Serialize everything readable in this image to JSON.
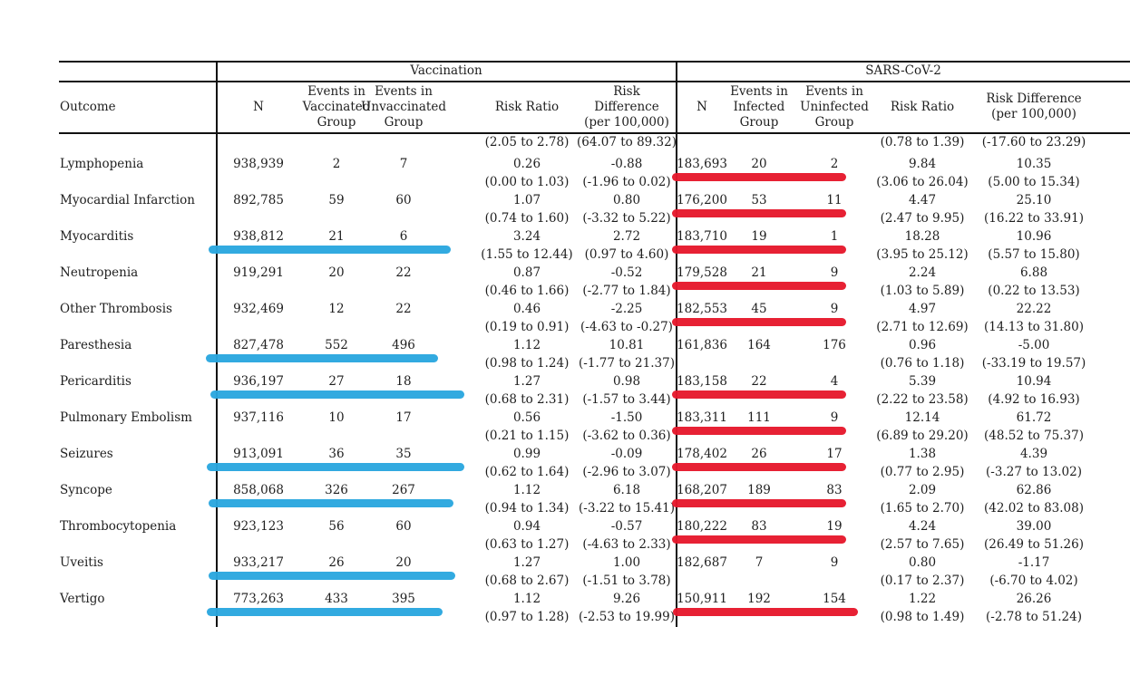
{
  "header": {
    "section_vaccination": "Vaccination",
    "section_sars": "SARS-CoV-2",
    "col_outcome": "Outcome",
    "vax": {
      "n": "N",
      "events_exposed": "Events in\nVaccinated\nGroup",
      "events_unexposed": "Events in\nUnvaccinated\nGroup",
      "risk_ratio": "Risk Ratio",
      "risk_difference": "Risk\nDifference\n(per 100,000)"
    },
    "sars": {
      "n": "N",
      "events_exposed": "Events in\nInfected\nGroup",
      "events_unexposed": "Events in\nUninfected\nGroup",
      "risk_ratio": "Risk Ratio",
      "risk_difference": "Risk Difference\n(per 100,000)"
    }
  },
  "orphan_row": {
    "vax_risk_ratio_ci": "(2.05 to 2.78)",
    "vax_risk_difference_ci": "(64.07 to 89.32)",
    "sars_risk_ratio_ci": "(0.78 to 1.39)",
    "sars_risk_difference_ci": "(-17.60 to 23.29)"
  },
  "annotations": {
    "vaccination_highlight_color": "#2aa7df",
    "sars_highlight_color": "#e6182c"
  },
  "table": {
    "rows": [
      {
        "outcome": "Lymphopenia",
        "vax": {
          "n": "938,939",
          "events_exposed": "2",
          "events_unexposed": "7",
          "rr": "0.26",
          "rr_ci": "(0.00 to 1.03)",
          "rd": "-0.88",
          "rd_ci": "(-1.96 to 0.02)"
        },
        "sars": {
          "n": "183,693",
          "events_exposed": "20",
          "events_unexposed": "2",
          "rr": "9.84",
          "rr_ci": "(3.06 to 26.04)",
          "rd": "10.35",
          "rd_ci": "(5.00 to 15.34)"
        },
        "vax_marker": null,
        "sars_marker": [
          741,
          933
        ]
      },
      {
        "outcome": "Myocardial Infarction",
        "vax": {
          "n": "892,785",
          "events_exposed": "59",
          "events_unexposed": "60",
          "rr": "1.07",
          "rr_ci": "(0.74 to 1.60)",
          "rd": "0.80",
          "rd_ci": "(-3.32 to 5.22)"
        },
        "sars": {
          "n": "176,200",
          "events_exposed": "53",
          "events_unexposed": "11",
          "rr": "4.47",
          "rr_ci": "(2.47 to 9.95)",
          "rd": "25.10",
          "rd_ci": "(16.22 to 33.91)"
        },
        "vax_marker": null,
        "sars_marker": [
          741,
          933
        ]
      },
      {
        "outcome": "Myocarditis",
        "vax": {
          "n": "938,812",
          "events_exposed": "21",
          "events_unexposed": "6",
          "rr": "3.24",
          "rr_ci": "(1.55 to 12.44)",
          "rd": "2.72",
          "rd_ci": "(0.97 to 4.60)"
        },
        "sars": {
          "n": "183,710",
          "events_exposed": "19",
          "events_unexposed": "1",
          "rr": "18.28",
          "rr_ci": "(3.95 to 25.12)",
          "rd": "10.96",
          "rd_ci": "(5.57 to 15.80)"
        },
        "vax_marker": [
          230,
          497
        ],
        "sars_marker": [
          741,
          933
        ]
      },
      {
        "outcome": "Neutropenia",
        "vax": {
          "n": "919,291",
          "events_exposed": "20",
          "events_unexposed": "22",
          "rr": "0.87",
          "rr_ci": "(0.46 to 1.66)",
          "rd": "-0.52",
          "rd_ci": "(-2.77 to 1.84)"
        },
        "sars": {
          "n": "179,528",
          "events_exposed": "21",
          "events_unexposed": "9",
          "rr": "2.24",
          "rr_ci": "(1.03 to 5.89)",
          "rd": "6.88",
          "rd_ci": "(0.22 to 13.53)"
        },
        "vax_marker": null,
        "sars_marker": [
          741,
          933
        ]
      },
      {
        "outcome": "Other Thrombosis",
        "vax": {
          "n": "932,469",
          "events_exposed": "12",
          "events_unexposed": "22",
          "rr": "0.46",
          "rr_ci": "(0.19 to 0.91)",
          "rd": "-2.25",
          "rd_ci": "(-4.63 to -0.27)"
        },
        "sars": {
          "n": "182,553",
          "events_exposed": "45",
          "events_unexposed": "9",
          "rr": "4.97",
          "rr_ci": "(2.71 to 12.69)",
          "rd": "22.22",
          "rd_ci": "(14.13 to 31.80)"
        },
        "vax_marker": null,
        "sars_marker": [
          741,
          933
        ]
      },
      {
        "outcome": "Paresthesia",
        "vax": {
          "n": "827,478",
          "events_exposed": "552",
          "events_unexposed": "496",
          "rr": "1.12",
          "rr_ci": "(0.98 to 1.24)",
          "rd": "10.81",
          "rd_ci": "(-1.77 to 21.37)"
        },
        "sars": {
          "n": "161,836",
          "events_exposed": "164",
          "events_unexposed": "176",
          "rr": "0.96",
          "rr_ci": "(0.76 to 1.18)",
          "rd": "-5.00",
          "rd_ci": "(-33.19 to 19.57)"
        },
        "vax_marker": [
          227,
          483
        ],
        "sars_marker": null
      },
      {
        "outcome": "Pericarditis",
        "vax": {
          "n": "936,197",
          "events_exposed": "27",
          "events_unexposed": "18",
          "rr": "1.27",
          "rr_ci": "(0.68 to 2.31)",
          "rd": "0.98",
          "rd_ci": "(-1.57 to 3.44)"
        },
        "sars": {
          "n": "183,158",
          "events_exposed": "22",
          "events_unexposed": "4",
          "rr": "5.39",
          "rr_ci": "(2.22 to 23.58)",
          "rd": "10.94",
          "rd_ci": "(4.92 to 16.93)"
        },
        "vax_marker": [
          232,
          512
        ],
        "sars_marker": [
          741,
          933
        ]
      },
      {
        "outcome": "Pulmonary Embolism",
        "vax": {
          "n": "937,116",
          "events_exposed": "10",
          "events_unexposed": "17",
          "rr": "0.56",
          "rr_ci": "(0.21 to 1.15)",
          "rd": "-1.50",
          "rd_ci": "(-3.62 to 0.36)"
        },
        "sars": {
          "n": "183,311",
          "events_exposed": "111",
          "events_unexposed": "9",
          "rr": "12.14",
          "rr_ci": "(6.89 to 29.20)",
          "rd": "61.72",
          "rd_ci": "(48.52 to 75.37)"
        },
        "vax_marker": null,
        "sars_marker": [
          741,
          933
        ]
      },
      {
        "outcome": "Seizures",
        "vax": {
          "n": "913,091",
          "events_exposed": "36",
          "events_unexposed": "35",
          "rr": "0.99",
          "rr_ci": "(0.62 to 1.64)",
          "rd": "-0.09",
          "rd_ci": "(-2.96 to 3.07)"
        },
        "sars": {
          "n": "178,402",
          "events_exposed": "26",
          "events_unexposed": "17",
          "rr": "1.38",
          "rr_ci": "(0.77 to 2.95)",
          "rd": "4.39",
          "rd_ci": "(-3.27 to 13.02)"
        },
        "vax_marker": [
          228,
          512
        ],
        "sars_marker": [
          741,
          933
        ]
      },
      {
        "outcome": "Syncope",
        "vax": {
          "n": "858,068",
          "events_exposed": "326",
          "events_unexposed": "267",
          "rr": "1.12",
          "rr_ci": "(0.94 to 1.34)",
          "rd": "6.18",
          "rd_ci": "(-3.22 to 15.41)"
        },
        "sars": {
          "n": "168,207",
          "events_exposed": "189",
          "events_unexposed": "83",
          "rr": "2.09",
          "rr_ci": "(1.65 to 2.70)",
          "rd": "62.86",
          "rd_ci": "(42.02 to 83.08)"
        },
        "vax_marker": [
          230,
          500
        ],
        "sars_marker": [
          741,
          933
        ]
      },
      {
        "outcome": "Thrombocytopenia",
        "vax": {
          "n": "923,123",
          "events_exposed": "56",
          "events_unexposed": "60",
          "rr": "0.94",
          "rr_ci": "(0.63 to 1.27)",
          "rd": "-0.57",
          "rd_ci": "(-4.63 to 2.33)"
        },
        "sars": {
          "n": "180,222",
          "events_exposed": "83",
          "events_unexposed": "19",
          "rr": "4.24",
          "rr_ci": "(2.57 to 7.65)",
          "rd": "39.00",
          "rd_ci": "(26.49 to 51.26)"
        },
        "vax_marker": null,
        "sars_marker": [
          741,
          933
        ]
      },
      {
        "outcome": "Uveitis",
        "vax": {
          "n": "933,217",
          "events_exposed": "26",
          "events_unexposed": "20",
          "rr": "1.27",
          "rr_ci": "(0.68 to 2.67)",
          "rd": "1.00",
          "rd_ci": "(-1.51 to 3.78)"
        },
        "sars": {
          "n": "182,687",
          "events_exposed": "7",
          "events_unexposed": "9",
          "rr": "0.80",
          "rr_ci": "(0.17 to 2.37)",
          "rd": "-1.17",
          "rd_ci": "(-6.70 to 4.02)"
        },
        "vax_marker": [
          230,
          502
        ],
        "sars_marker": null
      },
      {
        "outcome": "Vertigo",
        "vax": {
          "n": "773,263",
          "events_exposed": "433",
          "events_unexposed": "395",
          "rr": "1.12",
          "rr_ci": "(0.97 to 1.28)",
          "rd": "9.26",
          "rd_ci": "(-2.53 to 19.99)"
        },
        "sars": {
          "n": "150,911",
          "events_exposed": "192",
          "events_unexposed": "154",
          "rr": "1.22",
          "rr_ci": "(0.98 to 1.49)",
          "rd": "26.26",
          "rd_ci": "(-2.78 to 51.24)"
        },
        "vax_marker": [
          228,
          488
        ],
        "sars_marker": [
          742,
          946
        ]
      }
    ]
  }
}
